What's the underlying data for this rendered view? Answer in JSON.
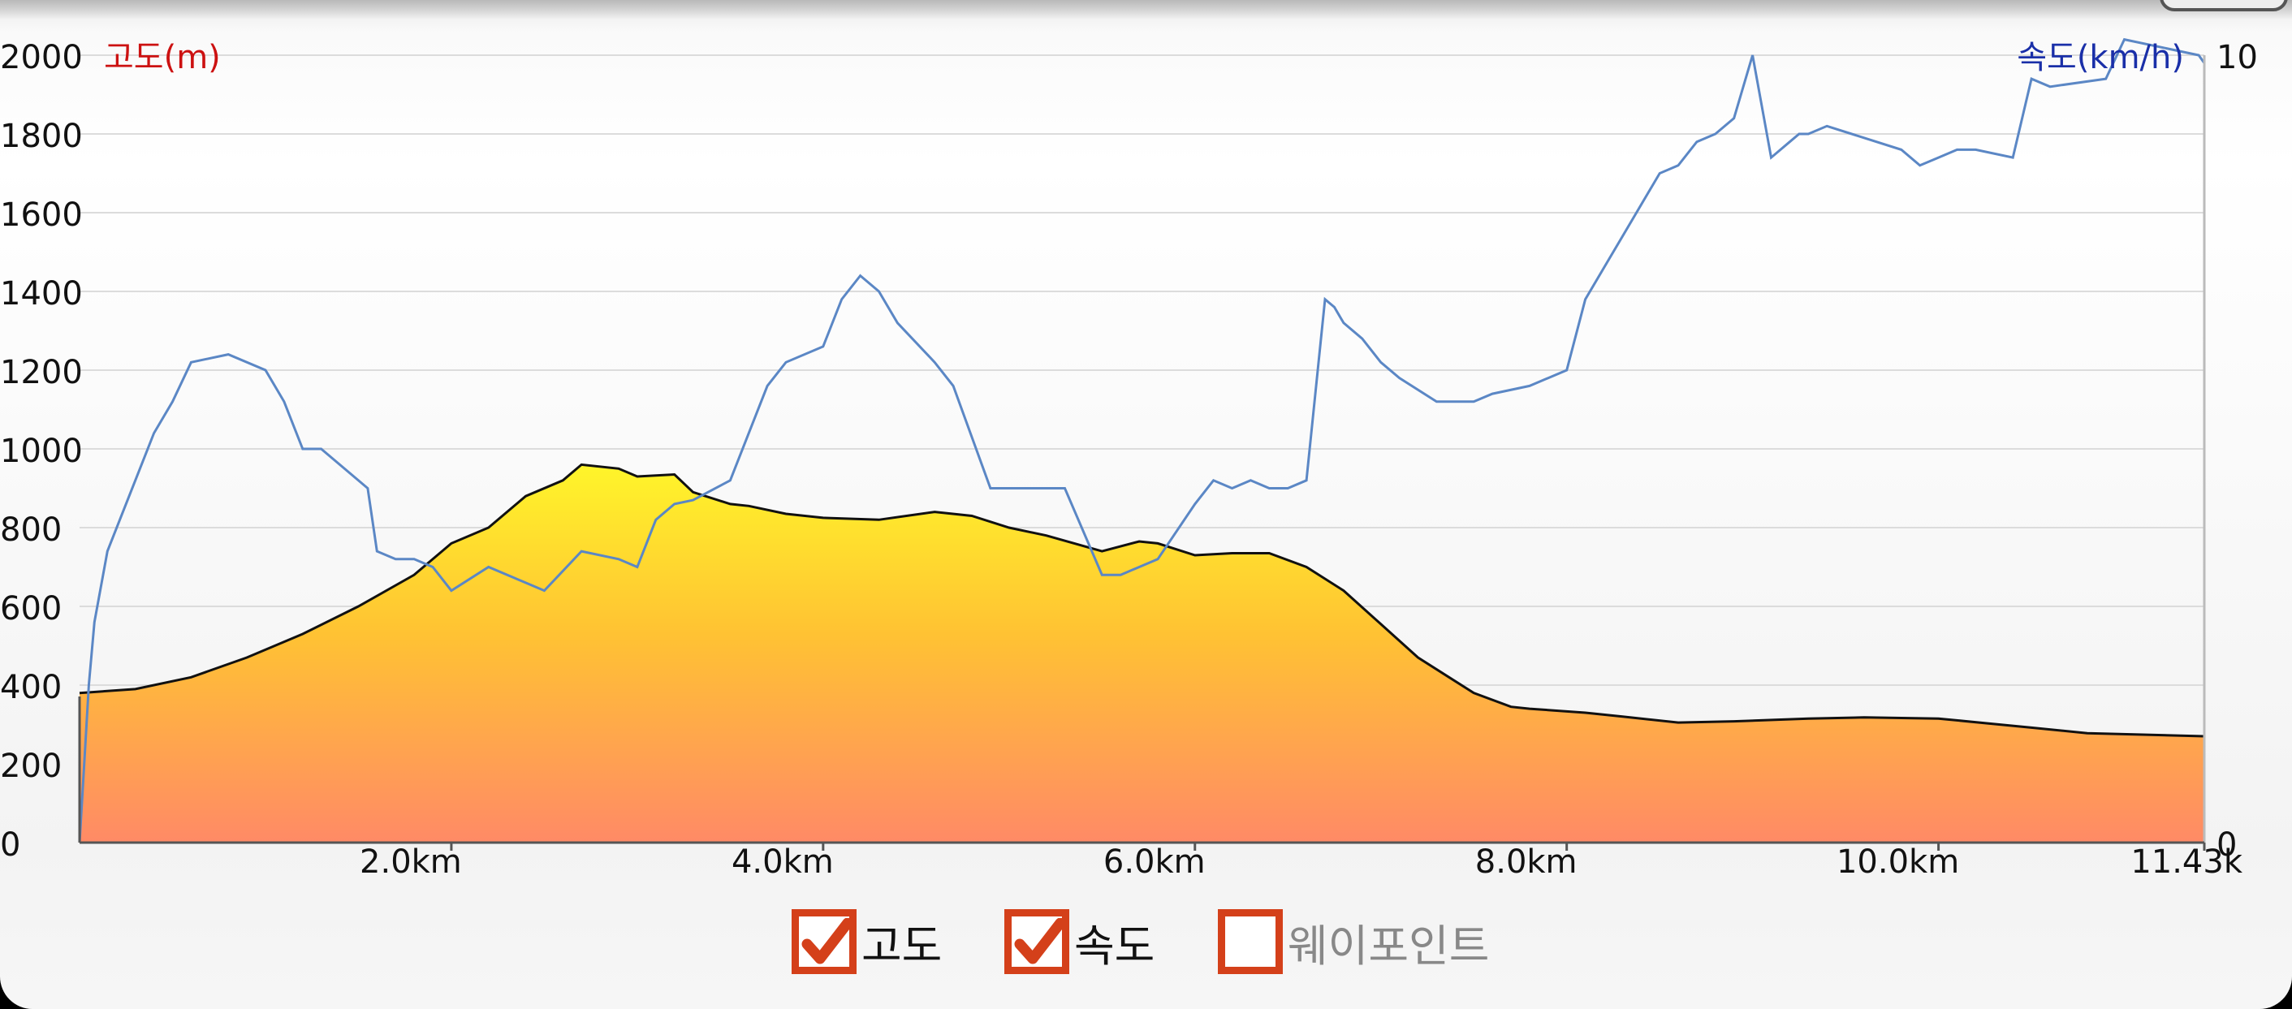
{
  "chart_data": {
    "type": "area",
    "y_left_label": "고도(m)",
    "y_right_label": "속도(km/h)",
    "y_left_ticks": [
      "2000",
      "1800",
      "1600",
      "1400",
      "1200",
      "1000",
      "800",
      "600",
      "400",
      "200",
      "0"
    ],
    "y_right_ticks": [
      "10",
      "0"
    ],
    "y_left_range": [
      0,
      2000
    ],
    "y_right_range": [
      0,
      10
    ],
    "x_range": [
      0,
      11.43
    ],
    "x_tick_values": [
      2,
      4,
      6,
      8,
      10,
      11.43
    ],
    "x_ticks": [
      "2.0km",
      "4.0km",
      "6.0km",
      "8.0km",
      "10.0km",
      "11.43k"
    ],
    "grid": true,
    "series": [
      {
        "name": "고도",
        "axis": "left",
        "style": "area",
        "x": [
          0,
          0.3,
          0.6,
          0.9,
          1.2,
          1.5,
          1.8,
          2.0,
          2.2,
          2.4,
          2.6,
          2.7,
          2.9,
          3.0,
          3.2,
          3.3,
          3.5,
          3.6,
          3.8,
          4.0,
          4.3,
          4.6,
          4.8,
          5.0,
          5.2,
          5.5,
          5.7,
          5.8,
          6.0,
          6.2,
          6.4,
          6.6,
          6.8,
          7.0,
          7.2,
          7.5,
          7.7,
          7.8,
          8.1,
          8.3,
          8.6,
          8.9,
          9.3,
          9.6,
          10.0,
          10.5,
          10.8,
          11.43
        ],
        "y": [
          380,
          390,
          420,
          470,
          530,
          600,
          680,
          760,
          800,
          880,
          920,
          960,
          950,
          930,
          935,
          890,
          860,
          855,
          835,
          825,
          820,
          840,
          830,
          800,
          780,
          740,
          765,
          760,
          730,
          735,
          735,
          700,
          640,
          555,
          470,
          380,
          345,
          340,
          330,
          320,
          305,
          308,
          315,
          318,
          315,
          292,
          278,
          270
        ]
      },
      {
        "name": "속도",
        "axis": "right",
        "style": "line",
        "x": [
          0,
          0.02,
          0.05,
          0.08,
          0.15,
          0.25,
          0.4,
          0.5,
          0.6,
          0.8,
          1.0,
          1.1,
          1.2,
          1.3,
          1.4,
          1.55,
          1.6,
          1.7,
          1.8,
          1.9,
          2.0,
          2.2,
          2.4,
          2.5,
          2.7,
          2.9,
          3.0,
          3.1,
          3.2,
          3.3,
          3.5,
          3.7,
          3.8,
          4.0,
          4.1,
          4.2,
          4.3,
          4.4,
          4.6,
          4.7,
          4.9,
          5.0,
          5.1,
          5.3,
          5.5,
          5.6,
          5.8,
          6.0,
          6.1,
          6.2,
          6.3,
          6.4,
          6.5,
          6.6,
          6.7,
          6.75,
          6.8,
          6.9,
          7.0,
          7.1,
          7.3,
          7.5,
          7.6,
          7.8,
          8.0,
          8.1,
          8.2,
          8.3,
          8.5,
          8.6,
          8.7,
          8.8,
          8.9,
          9.0,
          9.1,
          9.2,
          9.25,
          9.3,
          9.4,
          9.8,
          9.9,
          10.0,
          10.1,
          10.2,
          10.4,
          10.5,
          10.6,
          10.9,
          11.0,
          11.4,
          11.43
        ],
        "y": [
          0,
          0.8,
          2.0,
          2.8,
          3.7,
          4.3,
          5.2,
          5.6,
          6.1,
          6.2,
          6.0,
          5.6,
          5.0,
          5.0,
          4.8,
          4.5,
          3.7,
          3.6,
          3.6,
          3.5,
          3.2,
          3.5,
          3.3,
          3.2,
          3.7,
          3.6,
          3.5,
          4.1,
          4.3,
          4.35,
          4.6,
          5.8,
          6.1,
          6.3,
          6.9,
          7.2,
          7.0,
          6.6,
          6.1,
          5.8,
          4.5,
          4.5,
          4.5,
          4.5,
          3.4,
          3.4,
          3.6,
          4.3,
          4.6,
          4.5,
          4.6,
          4.5,
          4.5,
          4.6,
          6.9,
          6.8,
          6.6,
          6.4,
          6.1,
          5.9,
          5.6,
          5.6,
          5.7,
          5.8,
          6.0,
          6.9,
          7.3,
          7.7,
          8.5,
          8.6,
          8.9,
          9.0,
          9.2,
          10.0,
          8.7,
          8.9,
          9.0,
          9.0,
          9.1,
          8.8,
          8.6,
          8.7,
          8.8,
          8.8,
          8.7,
          9.7,
          9.6,
          9.7,
          10.2,
          10.0,
          9.9
        ]
      }
    ]
  },
  "legend": {
    "altitude_label": "고도",
    "speed_label": "속도",
    "waypoint_label": "웨이포인트"
  },
  "colors": {
    "altitude_label": "#cc1111",
    "speed_label": "#1a2fa8",
    "speed_line": "#5b87c5",
    "area_top": "#fff52a",
    "area_bottom": "#ff8a66",
    "checkbox": "#d4401a"
  }
}
